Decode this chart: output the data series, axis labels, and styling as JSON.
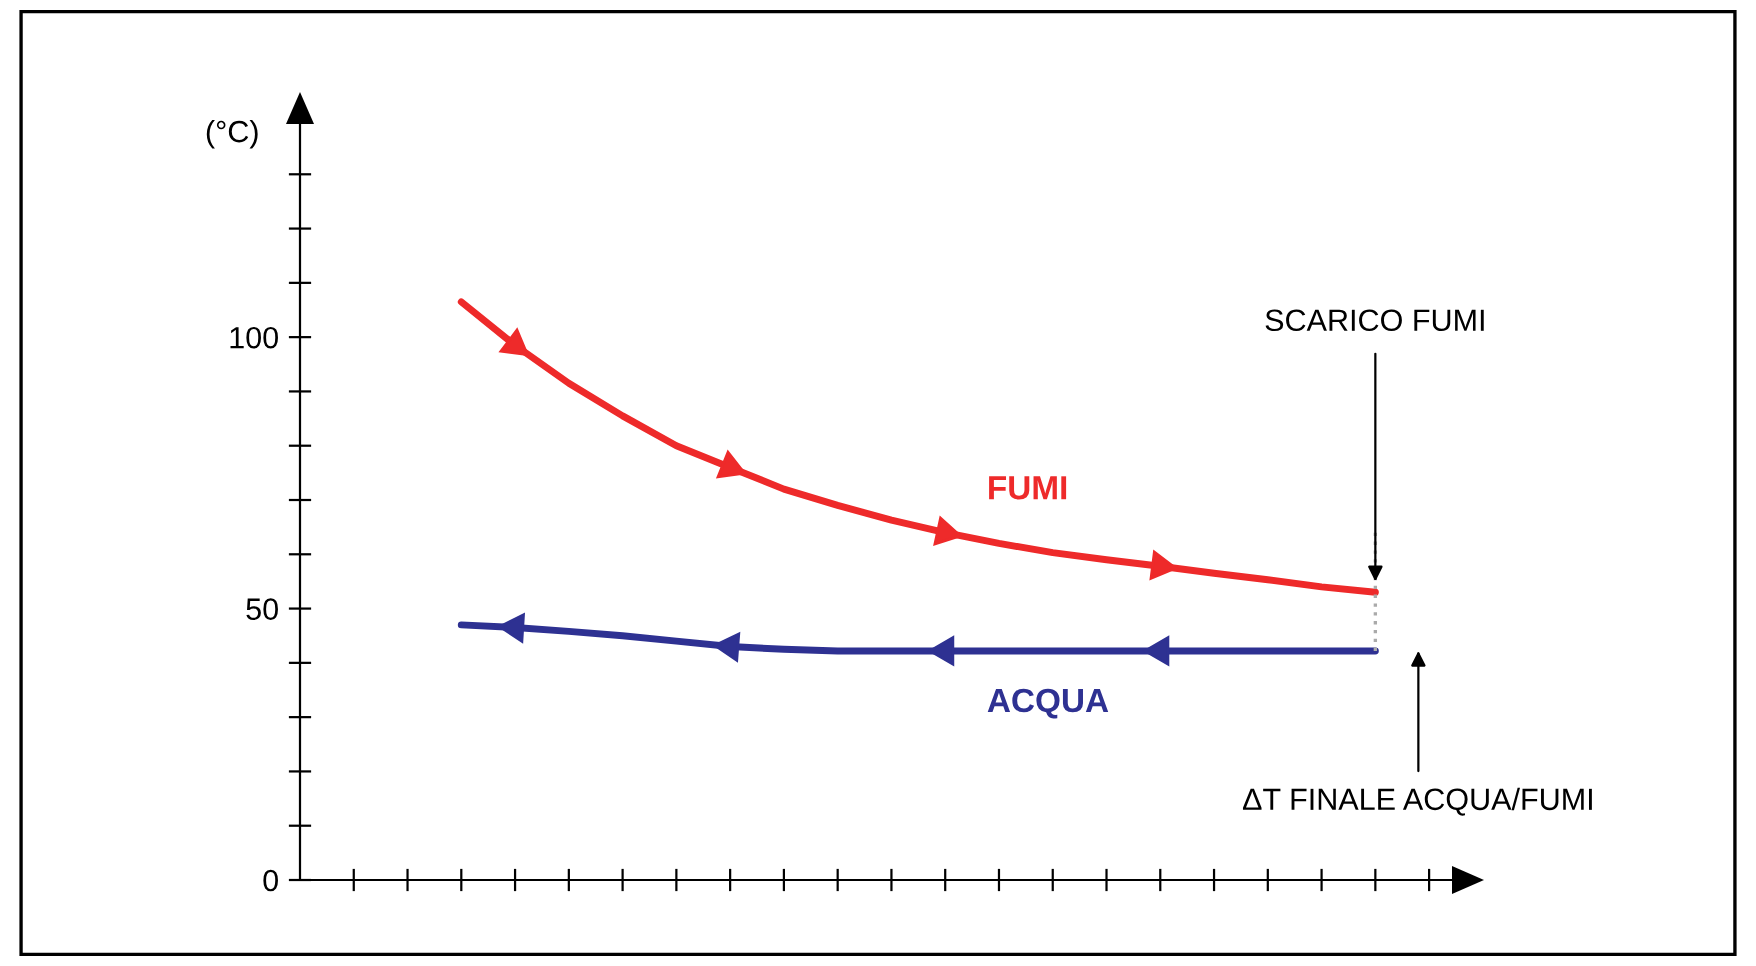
{
  "chart_data": {
    "type": "line",
    "ylabel": "(°C)",
    "categories": [
      null,
      null,
      null,
      null,
      null,
      null,
      null,
      null,
      null,
      null,
      null,
      null,
      null,
      null,
      null,
      null,
      null,
      null,
      null,
      null,
      null,
      null
    ],
    "series": [
      {
        "name": "FUMI",
        "color": "#ee2a2a",
        "values": [
          null,
          null,
          null,
          106.5,
          98.5,
          91.5,
          85.5,
          80,
          76,
          72,
          69,
          66.3,
          64,
          62,
          60.3,
          59,
          57.8,
          56.5,
          55.3,
          54,
          53,
          null
        ]
      },
      {
        "name": "ACQUA",
        "color": "#2e3192",
        "values": [
          null,
          null,
          null,
          47,
          46.5,
          45.8,
          45,
          44,
          43,
          42.5,
          42.2,
          42.2,
          42.2,
          42.2,
          42.2,
          42.2,
          42.2,
          42.2,
          42.2,
          42.2,
          42.2,
          null
        ]
      }
    ],
    "ylim": [
      0,
      140
    ],
    "yticks": [
      0,
      {
        "value": 10,
        "label": null
      },
      {
        "value": 20,
        "label": null
      },
      {
        "value": 30,
        "label": null
      },
      {
        "value": 40,
        "label": null
      },
      50,
      {
        "value": 60,
        "label": null
      },
      {
        "value": 70,
        "label": null
      },
      {
        "value": 80,
        "label": null
      },
      {
        "value": 90,
        "label": null
      },
      100,
      {
        "value": 110,
        "label": null
      },
      {
        "value": 120,
        "label": null
      },
      {
        "value": 130,
        "label": null
      }
    ],
    "line_style": "solid",
    "grid": false,
    "annotations": [
      "SCARICO FUMI",
      "ΔT FINALE ACQUA/FUMI"
    ]
  }
}
